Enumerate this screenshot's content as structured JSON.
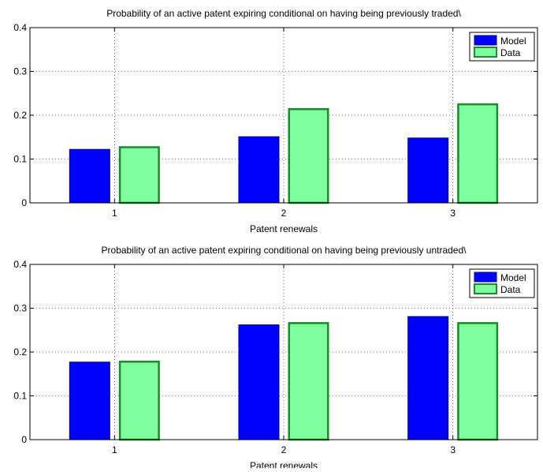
{
  "chart_data": [
    {
      "type": "bar",
      "title": "Probability of an active patent expiring conditional on having being previously traded\\",
      "xlabel": "Patent renewals",
      "ylabel": "",
      "categories": [
        "1",
        "2",
        "3"
      ],
      "ylim": [
        0,
        0.4
      ],
      "yticks": [
        "0",
        "0.1",
        "0.2",
        "0.3",
        "0.4"
      ],
      "grid": true,
      "legend": "top-right",
      "series": [
        {
          "name": "Model",
          "values": [
            0.122,
            0.151,
            0.148
          ],
          "color": "#0000ff",
          "edge": "#000080"
        },
        {
          "name": "Data",
          "values": [
            0.127,
            0.214,
            0.225
          ],
          "color": "#80ff9f",
          "edge": "#1a8a2a"
        }
      ]
    },
    {
      "type": "bar",
      "title": "Probability of an active patent expiring conditional on having being previously untraded\\",
      "xlabel": "Patent renewals",
      "ylabel": "",
      "categories": [
        "1",
        "2",
        "3"
      ],
      "ylim": [
        0,
        0.4
      ],
      "yticks": [
        "0",
        "0.1",
        "0.2",
        "0.3",
        "0.4"
      ],
      "grid": true,
      "legend": "top-right",
      "series": [
        {
          "name": "Model",
          "values": [
            0.177,
            0.262,
            0.281
          ],
          "color": "#0000ff",
          "edge": "#000080"
        },
        {
          "name": "Data",
          "values": [
            0.178,
            0.266,
            0.266
          ],
          "color": "#80ff9f",
          "edge": "#1a8a2a"
        }
      ]
    }
  ]
}
